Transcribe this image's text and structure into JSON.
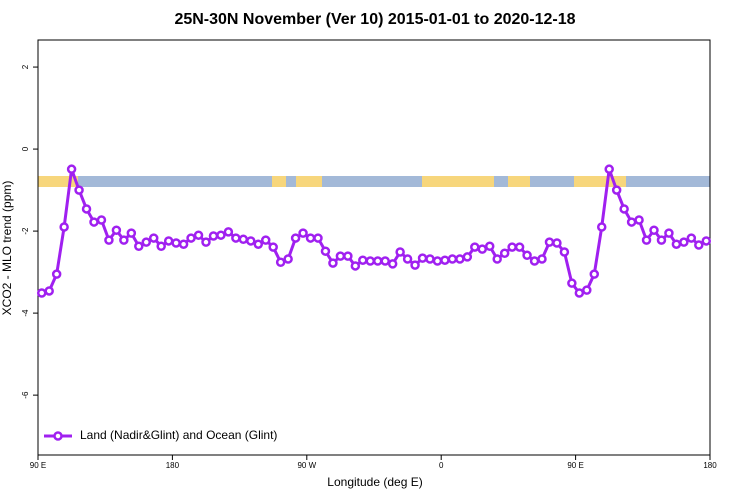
{
  "chart_data": {
    "type": "line",
    "title": "25N-30N November (Ver 10)   2015-01-01 to 2020-12-18",
    "x_label": "Longitude (deg E)",
    "y_label": "XCO2 - MLO trend (ppm)",
    "xlim": [
      90,
      540
    ],
    "ylim": [
      -7.46,
      2.66
    ],
    "xticks": [
      {
        "value": 90,
        "label": "90 E"
      },
      180,
      {
        "value": 270,
        "label": "90 W"
      },
      {
        "value": 360,
        "label": "0"
      },
      {
        "value": 450,
        "label": "90 E"
      },
      {
        "value": 540,
        "label": "180"
      }
    ],
    "yticks": [
      2,
      0,
      -2,
      -4,
      -6
    ],
    "legend": "bottomleft",
    "x": [
      92.5,
      97.5,
      102.5,
      107.5,
      112.5,
      117.5,
      122.5,
      127.5,
      132.5,
      137.5,
      142.5,
      147.5,
      152.5,
      157.5,
      162.5,
      167.5,
      172.5,
      177.5,
      182.5,
      187.5,
      192.5,
      197.5,
      202.5,
      207.5,
      212.5,
      217.5,
      222.5,
      227.5,
      232.5,
      237.5,
      242.5,
      247.5,
      252.5,
      257.5,
      262.5,
      267.5,
      272.5,
      277.5,
      282.5,
      287.5,
      292.5,
      297.5,
      302.5,
      307.5,
      312.5,
      317.5,
      322.5,
      327.5,
      332.5,
      337.5,
      342.5,
      347.5,
      352.5,
      357.5,
      362.5,
      367.5,
      372.5,
      377.5,
      382.5,
      387.5,
      392.5,
      397.5,
      402.5,
      407.5,
      412.5,
      417.5,
      422.5,
      427.5,
      432.5,
      437.5,
      442.5,
      447.5,
      452.5,
      457.5,
      462.5,
      467.5,
      472.5,
      477.5,
      482.5,
      487.5,
      492.5,
      497.5,
      502.5,
      507.5,
      512.5,
      517.5,
      522.5,
      527.5,
      532.5,
      537.5
    ],
    "series": [
      {
        "name": "Land (Nadir&Glint) and Ocean (Glint)",
        "color": "#a020f0",
        "values": [
          -3.51,
          -3.46,
          -3.05,
          -1.9,
          -0.49,
          -1.0,
          -1.46,
          -1.78,
          -1.73,
          -2.22,
          -1.98,
          -2.22,
          -2.05,
          -2.37,
          -2.27,
          -2.17,
          -2.37,
          -2.24,
          -2.29,
          -2.32,
          -2.17,
          -2.1,
          -2.27,
          -2.12,
          -2.1,
          -2.02,
          -2.17,
          -2.2,
          -2.24,
          -2.32,
          -2.22,
          -2.39,
          -2.76,
          -2.68,
          -2.17,
          -2.05,
          -2.17,
          -2.17,
          -2.49,
          -2.78,
          -2.61,
          -2.61,
          -2.85,
          -2.71,
          -2.73,
          -2.73,
          -2.73,
          -2.8,
          -2.51,
          -2.68,
          -2.83,
          -2.66,
          -2.68,
          -2.73,
          -2.71,
          -2.68,
          -2.68,
          -2.63,
          -2.39,
          -2.44,
          -2.37,
          -2.68,
          -2.54,
          -2.39,
          -2.39,
          -2.59,
          -2.73,
          -2.68,
          -2.27,
          -2.29,
          -2.51,
          -3.27,
          -3.51,
          -3.44,
          -3.05,
          -1.9,
          -0.49,
          -1.0,
          -1.46,
          -1.78,
          -1.73,
          -2.22,
          -1.98,
          -2.22,
          -2.05,
          -2.32,
          -2.27,
          -2.17,
          -2.34,
          -2.24
        ]
      }
    ]
  }
}
